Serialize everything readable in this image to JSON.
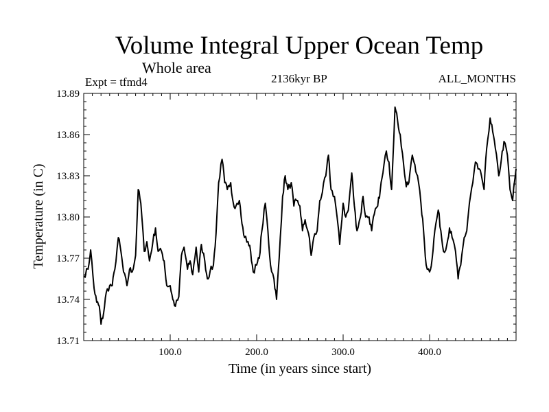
{
  "chart_data": {
    "type": "line",
    "title": "Volume Integral Upper Ocean Temp",
    "subtitle": "Whole area",
    "annotations": {
      "experiment": "Expt = tfmd4",
      "period": "2136kyr BP",
      "months": "ALL_MONTHS"
    },
    "xlabel": "Time (in years since start)",
    "ylabel": "Temperature (in C)",
    "xlim": [
      0,
      500
    ],
    "ylim": [
      13.71,
      13.89
    ],
    "xticks": [
      100,
      200,
      300,
      400
    ],
    "xtick_labels": [
      "100.0",
      "200.0",
      "300.0",
      "400.0"
    ],
    "yticks": [
      13.71,
      13.74,
      13.77,
      13.8,
      13.83,
      13.86,
      13.89
    ],
    "ytick_labels": [
      "13.71",
      "13.74",
      "13.77",
      "13.80",
      "13.83",
      "13.86",
      "13.89"
    ],
    "grid": false,
    "series": [
      {
        "name": "temperature",
        "x": [
          0,
          5,
          8,
          12,
          15,
          18,
          20,
          23,
          26,
          30,
          33,
          36,
          40,
          43,
          46,
          50,
          53,
          56,
          60,
          63,
          66,
          70,
          73,
          76,
          80,
          83,
          86,
          90,
          93,
          96,
          100,
          103,
          106,
          110,
          113,
          116,
          120,
          123,
          126,
          130,
          133,
          136,
          140,
          143,
          146,
          150,
          153,
          156,
          160,
          163,
          166,
          170,
          173,
          176,
          180,
          183,
          186,
          190,
          193,
          196,
          200,
          203,
          206,
          210,
          213,
          216,
          220,
          223,
          226,
          230,
          233,
          236,
          240,
          243,
          246,
          250,
          253,
          256,
          260,
          263,
          266,
          270,
          273,
          276,
          280,
          283,
          286,
          290,
          293,
          296,
          300,
          303,
          306,
          310,
          313,
          316,
          320,
          323,
          326,
          330,
          333,
          336,
          340,
          343,
          346,
          350,
          353,
          356,
          360,
          363,
          366,
          370,
          373,
          376,
          380,
          383,
          386,
          390,
          393,
          396,
          400,
          403,
          406,
          410,
          413,
          416,
          420,
          423,
          426,
          430,
          433,
          436,
          440,
          443,
          446,
          450,
          453,
          456,
          460,
          463,
          466,
          470,
          473,
          476,
          480,
          483,
          486,
          490,
          493,
          496,
          500
        ],
        "values": [
          13.757,
          13.762,
          13.776,
          13.748,
          13.738,
          13.735,
          13.722,
          13.73,
          13.745,
          13.75,
          13.75,
          13.762,
          13.785,
          13.775,
          13.76,
          13.75,
          13.762,
          13.76,
          13.772,
          13.82,
          13.81,
          13.775,
          13.782,
          13.768,
          13.782,
          13.792,
          13.775,
          13.775,
          13.768,
          13.75,
          13.75,
          13.74,
          13.735,
          13.742,
          13.772,
          13.778,
          13.762,
          13.768,
          13.758,
          13.778,
          13.76,
          13.78,
          13.768,
          13.755,
          13.76,
          13.765,
          13.788,
          13.825,
          13.842,
          13.825,
          13.82,
          13.825,
          13.81,
          13.808,
          13.812,
          13.795,
          13.785,
          13.782,
          13.775,
          13.76,
          13.765,
          13.77,
          13.79,
          13.81,
          13.79,
          13.765,
          13.755,
          13.74,
          13.77,
          13.815,
          13.83,
          13.82,
          13.825,
          13.808,
          13.812,
          13.808,
          13.79,
          13.798,
          13.788,
          13.772,
          13.785,
          13.79,
          13.812,
          13.818,
          13.83,
          13.845,
          13.82,
          13.815,
          13.8,
          13.78,
          13.81,
          13.8,
          13.805,
          13.832,
          13.808,
          13.79,
          13.8,
          13.815,
          13.8,
          13.8,
          13.79,
          13.802,
          13.808,
          13.82,
          13.832,
          13.848,
          13.84,
          13.82,
          13.88,
          13.87,
          13.86,
          13.838,
          13.822,
          13.825,
          13.845,
          13.838,
          13.83,
          13.81,
          13.79,
          13.765,
          13.76,
          13.77,
          13.79,
          13.805,
          13.79,
          13.775,
          13.78,
          13.792,
          13.785,
          13.775,
          13.755,
          13.765,
          13.785,
          13.79,
          13.81,
          13.825,
          13.84,
          13.835,
          13.83,
          13.82,
          13.85,
          13.872,
          13.862,
          13.85,
          13.83,
          13.842,
          13.855,
          13.845,
          13.82,
          13.812,
          13.835
        ]
      }
    ]
  }
}
